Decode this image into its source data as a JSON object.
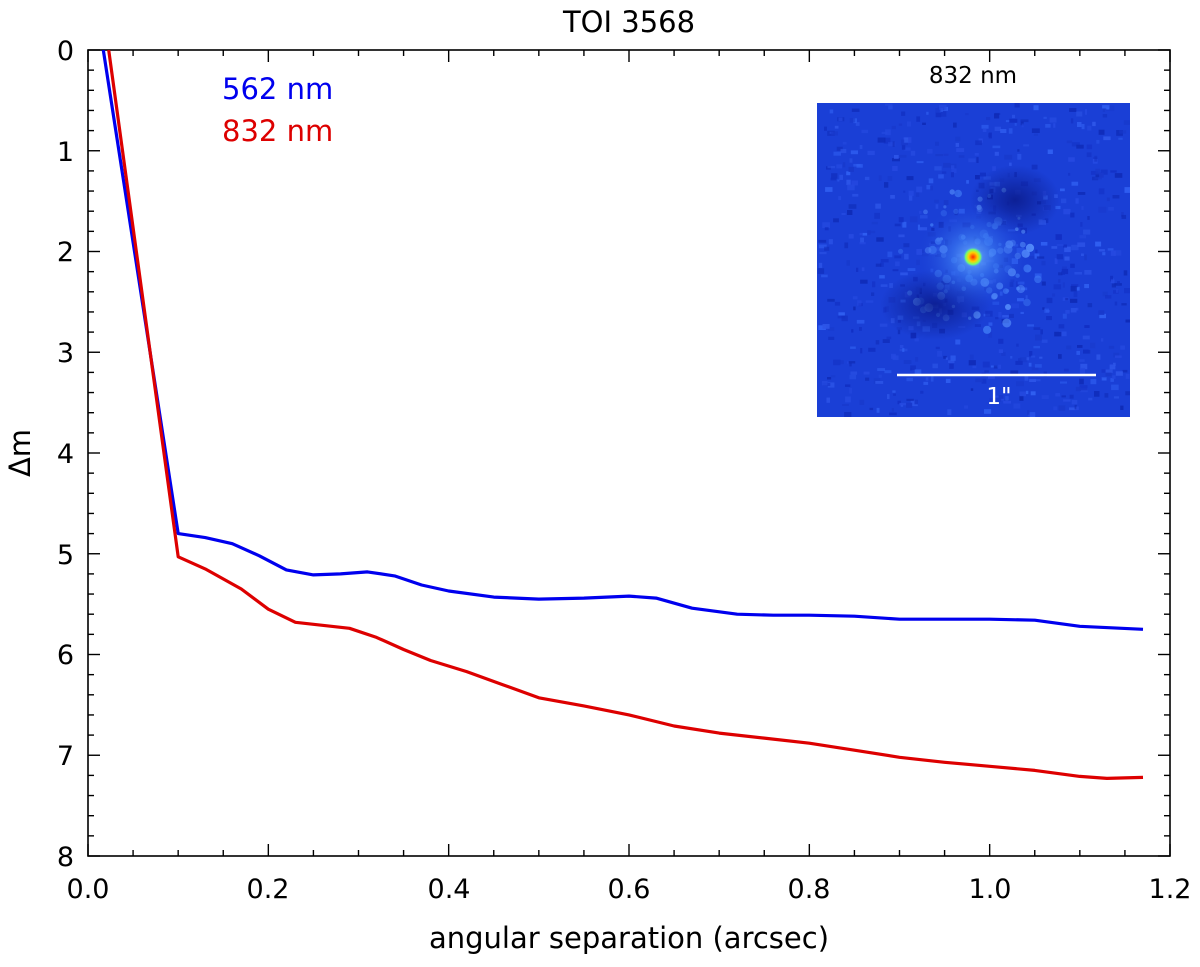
{
  "chart_data": {
    "type": "line",
    "title": "TOI 3568",
    "xlabel": "angular separation (arcsec)",
    "ylabel": "Δm",
    "xlim": [
      0.0,
      1.2
    ],
    "ylim": [
      8,
      0
    ],
    "y_inverted": true,
    "grid": false,
    "legend_placement": "top-left",
    "x_ticks": [
      "0.0",
      "0.2",
      "0.4",
      "0.6",
      "0.8",
      "1.0",
      "1.2"
    ],
    "y_ticks": [
      "0",
      "1",
      "2",
      "3",
      "4",
      "5",
      "6",
      "7",
      "8"
    ],
    "series": [
      {
        "name": "562 nm",
        "color": "#0000ee",
        "x": [
          0.017,
          0.1,
          0.13,
          0.16,
          0.19,
          0.22,
          0.25,
          0.28,
          0.31,
          0.34,
          0.37,
          0.4,
          0.45,
          0.5,
          0.55,
          0.6,
          0.63,
          0.67,
          0.72,
          0.76,
          0.8,
          0.85,
          0.9,
          0.95,
          1.0,
          1.05,
          1.1,
          1.17
        ],
        "y": [
          0.0,
          4.8,
          4.84,
          4.9,
          5.02,
          5.16,
          5.21,
          5.2,
          5.18,
          5.22,
          5.31,
          5.37,
          5.43,
          5.45,
          5.44,
          5.42,
          5.44,
          5.54,
          5.6,
          5.61,
          5.61,
          5.62,
          5.65,
          5.65,
          5.65,
          5.66,
          5.72,
          5.75
        ]
      },
      {
        "name": "832 nm",
        "color": "#dd0000",
        "x": [
          0.023,
          0.1,
          0.13,
          0.17,
          0.2,
          0.23,
          0.26,
          0.29,
          0.32,
          0.35,
          0.38,
          0.42,
          0.46,
          0.5,
          0.55,
          0.6,
          0.65,
          0.7,
          0.75,
          0.8,
          0.85,
          0.9,
          0.95,
          1.0,
          1.05,
          1.1,
          1.13,
          1.17
        ],
        "y": [
          0.0,
          5.03,
          5.15,
          5.35,
          5.55,
          5.68,
          5.71,
          5.74,
          5.83,
          5.95,
          6.06,
          6.17,
          6.3,
          6.43,
          6.51,
          6.6,
          6.71,
          6.78,
          6.83,
          6.88,
          6.95,
          7.02,
          7.07,
          7.11,
          7.15,
          7.21,
          7.23,
          7.22
        ]
      }
    ],
    "inset": {
      "title": "832 nm",
      "scale_bar_label": "1\""
    }
  }
}
